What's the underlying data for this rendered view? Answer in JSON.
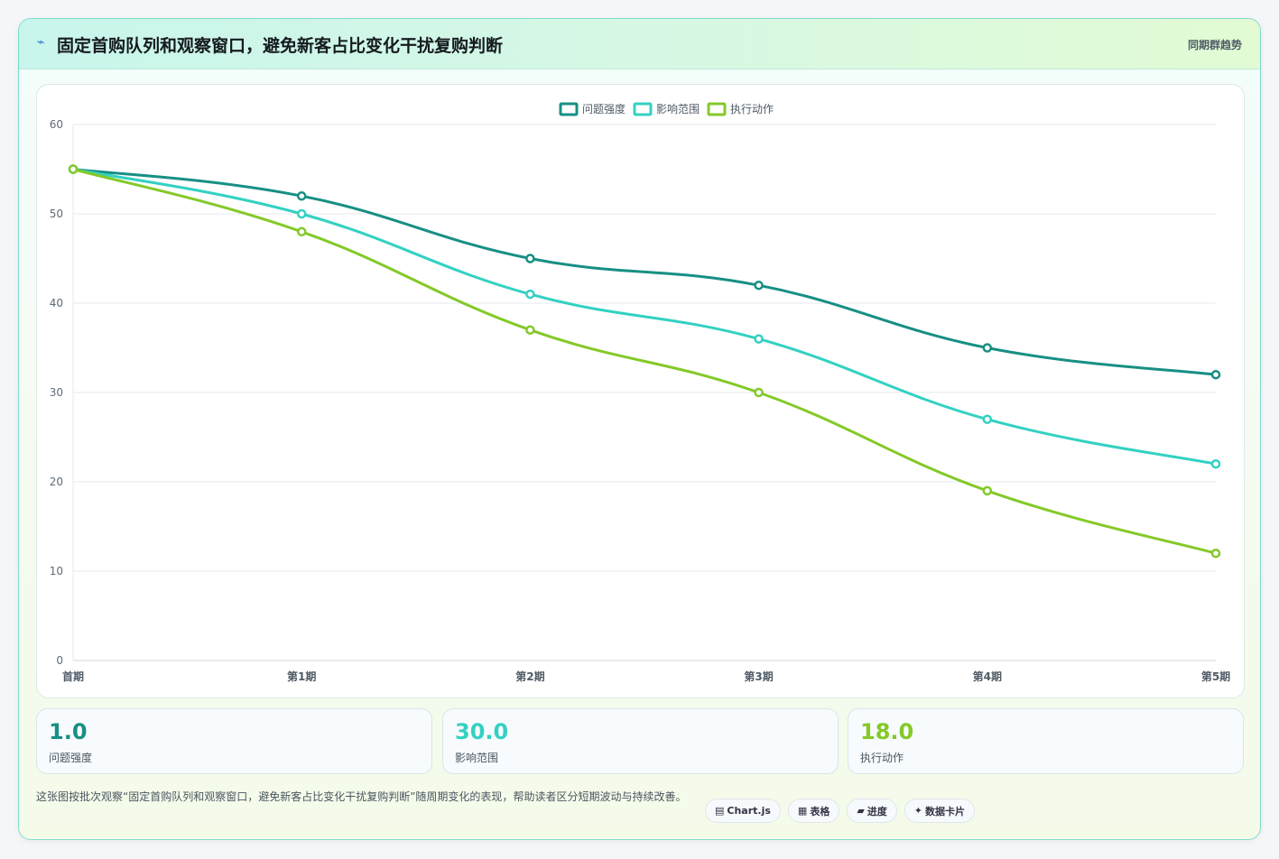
{
  "header": {
    "icon": "chart-trend-icon",
    "icon_glyph": "⌁",
    "title": "固定首购队列和观察窗口，避免新客占比变化干扰复购判断",
    "tag": "同期群趋势"
  },
  "chart_data": {
    "type": "line",
    "categories": [
      "首期",
      "第1期",
      "第2期",
      "第3期",
      "第4期",
      "第5期"
    ],
    "series": [
      {
        "name": "问题强度",
        "color": "#178f84",
        "values": [
          55,
          52,
          45,
          42,
          35,
          32
        ]
      },
      {
        "name": "影响范围",
        "color": "#33d1c2",
        "values": [
          55,
          50,
          41,
          36,
          27,
          22
        ]
      },
      {
        "name": "执行动作",
        "color": "#84c928",
        "values": [
          55,
          48,
          37,
          30,
          19,
          12
        ]
      }
    ],
    "ylim": [
      0,
      60
    ],
    "yticks": [
      0,
      10,
      20,
      30,
      40,
      50,
      60
    ],
    "grid": true,
    "legend": "top-center",
    "smooth": true
  },
  "stats": [
    {
      "value": "1.0",
      "label": "问题强度",
      "color": "#178f84"
    },
    {
      "value": "30.0",
      "label": "影响范围",
      "color": "#33d1c2"
    },
    {
      "value": "18.0",
      "label": "执行动作",
      "color": "#84c928"
    }
  ],
  "footer": {
    "description": "这张图按批次观察“固定首购队列和观察窗口，避免新客占比变化干扰复购判断”随周期变化的表现，帮助读者区分短期波动与持续改善。",
    "chips": [
      {
        "icon": "▤",
        "label": "Chart.js"
      },
      {
        "icon": "▦",
        "label": "表格"
      },
      {
        "icon": "▰",
        "label": "进度"
      },
      {
        "icon": "✦",
        "label": "数据卡片"
      }
    ]
  }
}
